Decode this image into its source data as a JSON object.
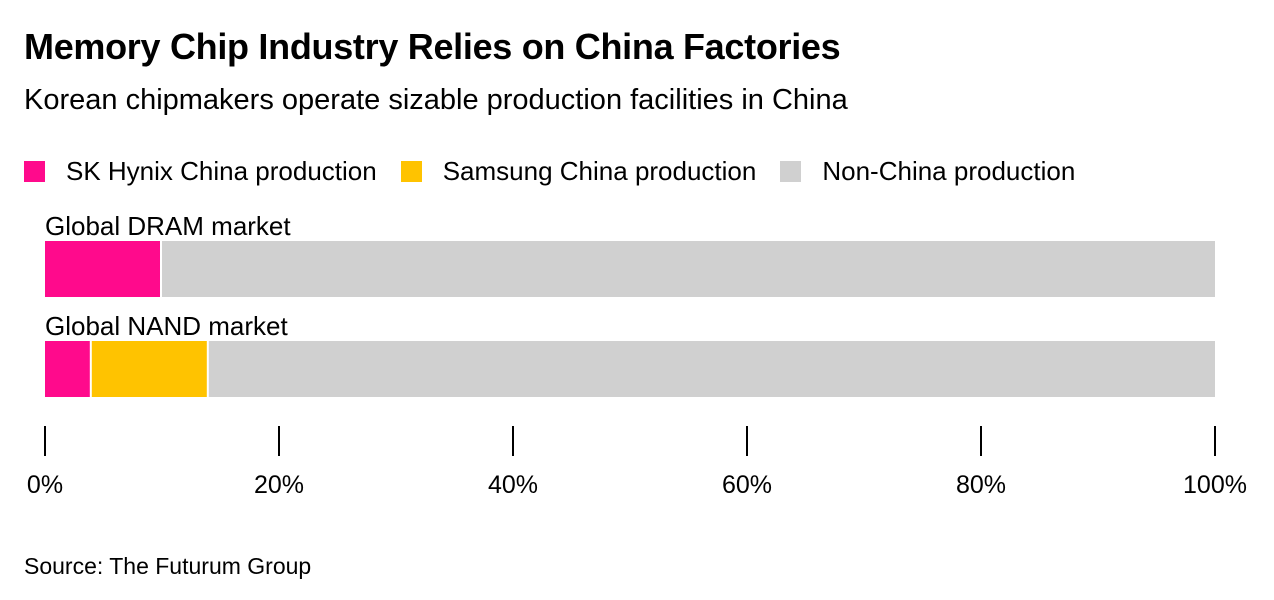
{
  "header": {
    "title": "Memory Chip Industry Relies on China Factories",
    "subtitle": "Korean chipmakers operate sizable production facilities in China"
  },
  "footer": {
    "source": "Source: The Futurum Group"
  },
  "chart_data": {
    "type": "bar",
    "orientation": "horizontal",
    "stacked": true,
    "categories": [
      "Global DRAM market",
      "Global NAND market"
    ],
    "series": [
      {
        "name": "SK Hynix China production",
        "color": "#ff0a8c",
        "values": [
          10,
          4
        ]
      },
      {
        "name": "Samsung China production",
        "color": "#ffc300",
        "values": [
          0,
          10
        ]
      },
      {
        "name": "Non-China production",
        "color": "#d0d0d0",
        "values": [
          90,
          86
        ]
      }
    ],
    "xlim": [
      0,
      100
    ],
    "xticks": [
      0,
      20,
      40,
      60,
      80,
      100
    ],
    "xtick_labels": [
      "0%",
      "20%",
      "40%",
      "60%",
      "80%",
      "100%"
    ],
    "legend_position": "top-left",
    "grid": false
  }
}
